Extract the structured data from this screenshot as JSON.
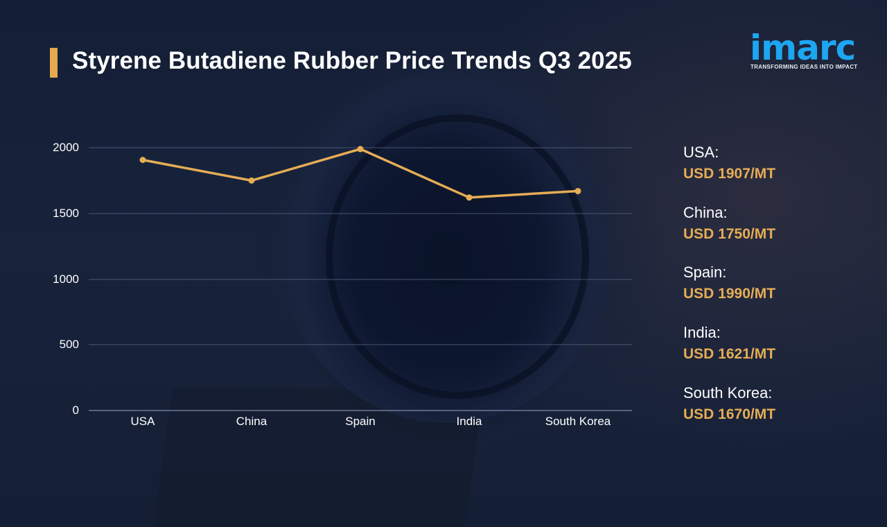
{
  "header": {
    "title": "Styrene Butadiene Rubber Price Trends Q3 2025",
    "accent_color": "#e6a94f"
  },
  "logo": {
    "wordmark": "imarc",
    "tagline": "TRANSFORMING IDEAS INTO IMPACT",
    "color": "#1da6f2"
  },
  "chart_data": {
    "type": "line",
    "title": "Styrene Butadiene Rubber Price Trends Q3 2025",
    "categories": [
      "USA",
      "China",
      "Spain",
      "India",
      "South Korea"
    ],
    "series": [
      {
        "name": "Price (USD/MT)",
        "values": [
          1907,
          1750,
          1990,
          1621,
          1670
        ],
        "color": "#e6ad55"
      }
    ],
    "xlabel": "",
    "ylabel": "",
    "yticks": [
      0,
      500,
      1000,
      1500,
      2000
    ],
    "ylim": [
      0,
      2000
    ],
    "grid": true,
    "legend_position": "right"
  },
  "axis": {
    "yticks": [
      "2000",
      "1500",
      "1000",
      "500",
      "0"
    ],
    "xticks": [
      "USA",
      "China",
      "Spain",
      "India",
      "South Korea"
    ]
  },
  "legend": {
    "items": [
      {
        "country": "USA:",
        "price": "USD 1907/MT"
      },
      {
        "country": "China:",
        "price": "USD 1750/MT"
      },
      {
        "country": "Spain:",
        "price": "USD 1990/MT"
      },
      {
        "country": "India:",
        "price": "USD 1621/MT"
      },
      {
        "country": "South Korea:",
        "price": "USD 1670/MT"
      }
    ]
  }
}
